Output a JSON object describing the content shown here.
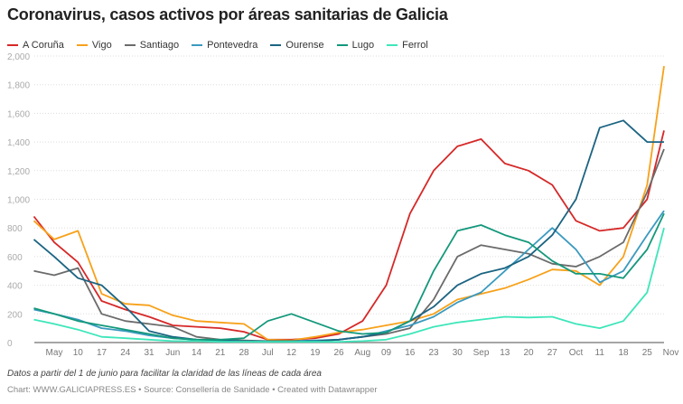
{
  "title": "Coronavirus, casos activos por áreas sanitarias de Galicia",
  "note": "Datos a partir del 1 de junio para facilitar la claridad de las líneas de cada área",
  "credit": "Chart: WWW.GALICIAPRESS.ES • Source: Consellería de Sanidade • Created with Datawrapper",
  "chart_data": {
    "type": "line",
    "title": "Coronavirus, casos activos por áreas sanitarias de Galicia",
    "ylim": [
      0,
      2000
    ],
    "yticks": [
      0,
      200,
      400,
      600,
      800,
      1000,
      1200,
      1400,
      1600,
      1800,
      2000
    ],
    "ytick_labels": [
      "0",
      "200",
      "400",
      "600",
      "800",
      "1,000",
      "1,200",
      "1,400",
      "1,600",
      "1,800",
      "2,000"
    ],
    "xticks": [
      {
        "date": "2020-05-03",
        "label": "May"
      },
      {
        "date": "2020-05-10",
        "label": "10"
      },
      {
        "date": "2020-05-17",
        "label": "17"
      },
      {
        "date": "2020-05-24",
        "label": "24"
      },
      {
        "date": "2020-05-31",
        "label": "31"
      },
      {
        "date": "2020-06-07",
        "label": "Jun"
      },
      {
        "date": "2020-06-14",
        "label": "14"
      },
      {
        "date": "2020-06-21",
        "label": "21"
      },
      {
        "date": "2020-06-28",
        "label": "28"
      },
      {
        "date": "2020-07-05",
        "label": "Jul"
      },
      {
        "date": "2020-07-12",
        "label": "12"
      },
      {
        "date": "2020-07-19",
        "label": "19"
      },
      {
        "date": "2020-07-26",
        "label": "26"
      },
      {
        "date": "2020-08-02",
        "label": "Aug"
      },
      {
        "date": "2020-08-09",
        "label": "09"
      },
      {
        "date": "2020-08-16",
        "label": "16"
      },
      {
        "date": "2020-08-23",
        "label": "23"
      },
      {
        "date": "2020-08-30",
        "label": "30"
      },
      {
        "date": "2020-09-06",
        "label": "Sep"
      },
      {
        "date": "2020-09-13",
        "label": "13"
      },
      {
        "date": "2020-09-20",
        "label": "20"
      },
      {
        "date": "2020-09-27",
        "label": "27"
      },
      {
        "date": "2020-10-04",
        "label": "Oct"
      },
      {
        "date": "2020-10-11",
        "label": "11"
      },
      {
        "date": "2020-10-18",
        "label": "18"
      },
      {
        "date": "2020-10-25",
        "label": "25"
      },
      {
        "date": "2020-11-01",
        "label": "Nov"
      }
    ],
    "grid": true,
    "legend_position": "top-left",
    "x": [
      "2020-04-27",
      "2020-05-03",
      "2020-05-10",
      "2020-05-17",
      "2020-05-24",
      "2020-05-31",
      "2020-06-07",
      "2020-06-14",
      "2020-06-21",
      "2020-06-28",
      "2020-07-05",
      "2020-07-12",
      "2020-07-19",
      "2020-07-26",
      "2020-08-02",
      "2020-08-09",
      "2020-08-16",
      "2020-08-23",
      "2020-08-30",
      "2020-09-06",
      "2020-09-13",
      "2020-09-20",
      "2020-09-27",
      "2020-10-04",
      "2020-10-11",
      "2020-10-18",
      "2020-10-25",
      "2020-10-30"
    ],
    "series": [
      {
        "name": "A Coruña",
        "color": "#d62828",
        "values": [
          880,
          700,
          560,
          290,
          230,
          180,
          120,
          110,
          100,
          75,
          20,
          20,
          30,
          60,
          150,
          400,
          900,
          1200,
          1370,
          1420,
          1250,
          1200,
          1100,
          850,
          780,
          800,
          1000,
          1480
        ]
      },
      {
        "name": "Vigo",
        "color": "#f7a11a",
        "values": [
          850,
          720,
          780,
          340,
          270,
          260,
          190,
          150,
          140,
          130,
          20,
          15,
          40,
          70,
          90,
          120,
          150,
          200,
          300,
          340,
          380,
          440,
          510,
          500,
          400,
          600,
          1100,
          1930
        ]
      },
      {
        "name": "Santiago",
        "color": "#6b6b6b",
        "values": [
          500,
          470,
          520,
          200,
          150,
          130,
          110,
          40,
          20,
          15,
          10,
          10,
          10,
          20,
          40,
          60,
          100,
          300,
          600,
          680,
          650,
          620,
          550,
          530,
          600,
          700,
          1050,
          1350
        ]
      },
      {
        "name": "Pontevedra",
        "color": "#3a9abf",
        "values": [
          230,
          200,
          160,
          100,
          80,
          50,
          30,
          20,
          15,
          10,
          10,
          10,
          15,
          20,
          40,
          80,
          120,
          180,
          280,
          350,
          500,
          650,
          800,
          650,
          420,
          500,
          750,
          920
        ]
      },
      {
        "name": "Ourense",
        "color": "#1b6482",
        "values": [
          720,
          600,
          450,
          400,
          250,
          80,
          40,
          20,
          15,
          10,
          10,
          10,
          10,
          20,
          40,
          70,
          150,
          250,
          400,
          480,
          520,
          600,
          750,
          1000,
          1500,
          1550,
          1400,
          1400
        ]
      },
      {
        "name": "Lugo",
        "color": "#13987b",
        "values": [
          240,
          200,
          150,
          120,
          90,
          60,
          30,
          20,
          20,
          30,
          150,
          200,
          140,
          80,
          60,
          70,
          150,
          500,
          780,
          820,
          750,
          700,
          570,
          480,
          480,
          450,
          650,
          900
        ]
      },
      {
        "name": "Ferrol",
        "color": "#3ee6ba",
        "values": [
          160,
          130,
          90,
          40,
          30,
          20,
          10,
          10,
          5,
          5,
          5,
          5,
          5,
          5,
          10,
          20,
          60,
          110,
          140,
          160,
          180,
          175,
          180,
          130,
          100,
          150,
          350,
          800
        ]
      }
    ]
  }
}
